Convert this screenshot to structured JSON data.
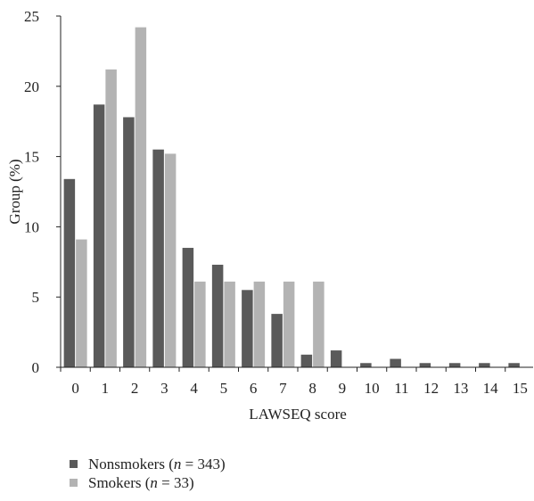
{
  "chart_data": {
    "type": "bar",
    "xlabel": "LAWSEQ score",
    "ylabel": "Group (%)",
    "ylim": [
      0,
      25
    ],
    "yticks": [
      "0",
      "5",
      "10",
      "15",
      "20",
      "25"
    ],
    "grid": false,
    "legend_position": "bottom-left",
    "categories": [
      "0",
      "1",
      "2",
      "3",
      "4",
      "5",
      "6",
      "7",
      "8",
      "9",
      "10",
      "11",
      "12",
      "13",
      "14",
      "15"
    ],
    "series": [
      {
        "name": "Nonsmokers",
        "n_label": "n",
        "n_value": "= 343)",
        "color": "#5a5a5a",
        "values": [
          13.4,
          18.7,
          17.8,
          15.5,
          8.5,
          7.3,
          5.5,
          3.8,
          0.9,
          1.2,
          0.3,
          0.6,
          0.3,
          0.3,
          0.3,
          0.3
        ]
      },
      {
        "name": "Smokers",
        "n_label": "n",
        "n_value": "= 33)",
        "color": "#b3b3b3",
        "values": [
          9.1,
          21.2,
          24.2,
          15.2,
          6.1,
          6.1,
          6.1,
          6.1,
          6.1,
          0,
          0,
          0,
          0,
          0,
          0,
          0
        ]
      }
    ]
  }
}
